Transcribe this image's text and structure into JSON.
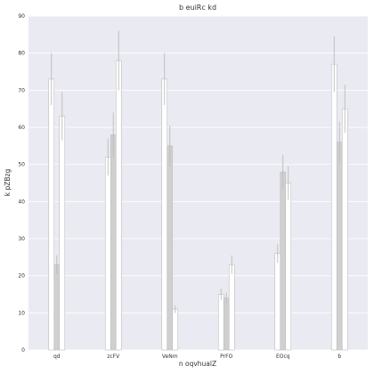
{
  "chart_data": {
    "type": "bar",
    "title": "b euiRc kd",
    "xlabel": "n oqvhualZ",
    "ylabel": "k pZBzg",
    "categories": [
      "qd",
      "zcFV",
      "VeNm",
      "PrFO",
      "EOcq",
      "b"
    ],
    "ylim": [
      0,
      90
    ],
    "yticks": [
      0,
      10,
      20,
      30,
      40,
      50,
      60,
      70,
      80,
      90
    ],
    "grid": true,
    "legend": "none",
    "series": [
      {
        "values": [
          73,
          52,
          73,
          15,
          26,
          77
        ],
        "errors": [
          7,
          5,
          7,
          1.5,
          2.5,
          7.5
        ],
        "color": "#ffffff"
      },
      {
        "values": [
          23,
          58,
          55,
          14,
          48,
          56
        ],
        "errors": [
          2.5,
          6,
          5.5,
          1.5,
          4.5,
          5.5
        ],
        "color": "#d0d0d0"
      },
      {
        "values": [
          63,
          78,
          11,
          23,
          45,
          65
        ],
        "errors": [
          6.5,
          8,
          1,
          2.5,
          4.5,
          6.5
        ],
        "color": "#ffffff"
      }
    ],
    "colors": {
      "background": "#eaeaf2",
      "grid": "#ffffff",
      "bar_edge": "#bdbdbd",
      "error_bar": "#bbbbbb"
    }
  }
}
